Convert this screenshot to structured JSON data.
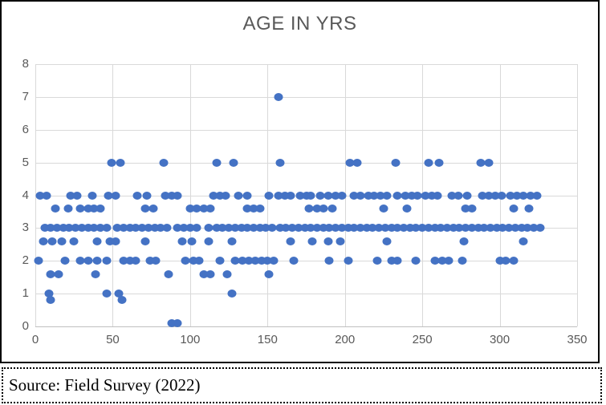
{
  "title": "AGE IN YRS",
  "source_note": "Source: Field Survey (2022)",
  "colors": {
    "dot": "#4472C4",
    "gridline": "#D9D9D9",
    "axis_line": "#BFBFBF",
    "axis_text": "#595959",
    "title_text": "#595959",
    "frame_border": "#000000"
  },
  "chart_data": {
    "type": "scatter",
    "title": "AGE IN YRS",
    "xlabel": "",
    "ylabel": "",
    "xlim": [
      0,
      350
    ],
    "ylim": [
      0,
      8
    ],
    "x_ticks": [
      0,
      50,
      100,
      150,
      200,
      250,
      300,
      350
    ],
    "y_ticks": [
      0,
      1,
      2,
      3,
      4,
      5,
      6,
      7,
      8
    ],
    "grid": true,
    "legend": false,
    "points": [
      [
        88,
        0.1
      ],
      [
        92,
        0.1
      ],
      [
        10,
        0.8
      ],
      [
        56,
        0.8
      ],
      [
        9,
        1
      ],
      [
        46,
        1
      ],
      [
        54,
        1
      ],
      [
        127,
        1
      ],
      [
        10,
        1.6
      ],
      [
        15,
        1.6
      ],
      [
        39,
        1.6
      ],
      [
        86,
        1.6
      ],
      [
        109,
        1.6
      ],
      [
        113,
        1.6
      ],
      [
        124,
        1.6
      ],
      [
        151,
        1.6
      ],
      [
        2,
        2
      ],
      [
        19,
        2
      ],
      [
        29,
        2
      ],
      [
        34,
        2
      ],
      [
        40,
        2
      ],
      [
        46,
        2
      ],
      [
        57,
        2
      ],
      [
        61,
        2
      ],
      [
        65,
        2
      ],
      [
        74,
        2
      ],
      [
        78,
        2
      ],
      [
        97,
        2
      ],
      [
        102,
        2
      ],
      [
        106,
        2
      ],
      [
        119,
        2
      ],
      [
        129,
        2
      ],
      [
        134,
        2
      ],
      [
        138,
        2
      ],
      [
        142,
        2
      ],
      [
        146,
        2
      ],
      [
        150,
        2
      ],
      [
        154,
        2
      ],
      [
        167,
        2
      ],
      [
        190,
        2
      ],
      [
        202,
        2
      ],
      [
        221,
        2
      ],
      [
        230,
        2
      ],
      [
        234,
        2
      ],
      [
        246,
        2
      ],
      [
        258,
        2
      ],
      [
        263,
        2
      ],
      [
        267,
        2
      ],
      [
        276,
        2
      ],
      [
        300,
        2
      ],
      [
        304,
        2
      ],
      [
        309,
        2
      ],
      [
        5,
        2.6
      ],
      [
        11,
        2.6
      ],
      [
        17,
        2.6
      ],
      [
        25,
        2.6
      ],
      [
        40,
        2.6
      ],
      [
        48,
        2.6
      ],
      [
        52,
        2.6
      ],
      [
        71,
        2.6
      ],
      [
        95,
        2.6
      ],
      [
        101,
        2.6
      ],
      [
        112,
        2.6
      ],
      [
        127,
        2.6
      ],
      [
        165,
        2.6
      ],
      [
        179,
        2.6
      ],
      [
        189,
        2.6
      ],
      [
        197,
        2.6
      ],
      [
        227,
        2.6
      ],
      [
        277,
        2.6
      ],
      [
        315,
        2.6
      ],
      [
        6,
        3
      ],
      [
        10,
        3
      ],
      [
        14,
        3
      ],
      [
        18,
        3
      ],
      [
        22,
        3
      ],
      [
        26,
        3
      ],
      [
        30,
        3
      ],
      [
        34,
        3
      ],
      [
        38,
        3
      ],
      [
        42,
        3
      ],
      [
        46,
        3
      ],
      [
        53,
        3
      ],
      [
        57,
        3
      ],
      [
        61,
        3
      ],
      [
        65,
        3
      ],
      [
        69,
        3
      ],
      [
        73,
        3
      ],
      [
        77,
        3
      ],
      [
        81,
        3
      ],
      [
        85,
        3
      ],
      [
        92,
        3
      ],
      [
        96,
        3
      ],
      [
        100,
        3
      ],
      [
        104,
        3
      ],
      [
        112,
        3
      ],
      [
        117,
        3
      ],
      [
        121,
        3
      ],
      [
        125,
        3
      ],
      [
        129,
        3
      ],
      [
        133,
        3
      ],
      [
        137,
        3
      ],
      [
        141,
        3
      ],
      [
        145,
        3
      ],
      [
        149,
        3
      ],
      [
        153,
        3
      ],
      [
        158,
        3
      ],
      [
        162,
        3
      ],
      [
        166,
        3
      ],
      [
        170,
        3
      ],
      [
        174,
        3
      ],
      [
        178,
        3
      ],
      [
        182,
        3
      ],
      [
        186,
        3
      ],
      [
        190,
        3
      ],
      [
        194,
        3
      ],
      [
        198,
        3
      ],
      [
        202,
        3
      ],
      [
        206,
        3
      ],
      [
        210,
        3
      ],
      [
        214,
        3
      ],
      [
        218,
        3
      ],
      [
        222,
        3
      ],
      [
        226,
        3
      ],
      [
        230,
        3
      ],
      [
        234,
        3
      ],
      [
        238,
        3
      ],
      [
        242,
        3
      ],
      [
        246,
        3
      ],
      [
        250,
        3
      ],
      [
        254,
        3
      ],
      [
        258,
        3
      ],
      [
        262,
        3
      ],
      [
        266,
        3
      ],
      [
        270,
        3
      ],
      [
        274,
        3
      ],
      [
        278,
        3
      ],
      [
        282,
        3
      ],
      [
        286,
        3
      ],
      [
        290,
        3
      ],
      [
        294,
        3
      ],
      [
        298,
        3
      ],
      [
        302,
        3
      ],
      [
        306,
        3
      ],
      [
        310,
        3
      ],
      [
        314,
        3
      ],
      [
        318,
        3
      ],
      [
        322,
        3
      ],
      [
        326,
        3
      ],
      [
        13,
        3.6
      ],
      [
        21,
        3.6
      ],
      [
        29,
        3.6
      ],
      [
        34,
        3.6
      ],
      [
        38,
        3.6
      ],
      [
        42,
        3.6
      ],
      [
        71,
        3.6
      ],
      [
        76,
        3.6
      ],
      [
        100,
        3.6
      ],
      [
        104,
        3.6
      ],
      [
        109,
        3.6
      ],
      [
        113,
        3.6
      ],
      [
        137,
        3.6
      ],
      [
        141,
        3.6
      ],
      [
        145,
        3.6
      ],
      [
        177,
        3.6
      ],
      [
        182,
        3.6
      ],
      [
        186,
        3.6
      ],
      [
        192,
        3.6
      ],
      [
        225,
        3.6
      ],
      [
        240,
        3.6
      ],
      [
        278,
        3.6
      ],
      [
        282,
        3.6
      ],
      [
        309,
        3.6
      ],
      [
        319,
        3.6
      ],
      [
        3,
        4
      ],
      [
        7,
        4
      ],
      [
        23,
        4
      ],
      [
        27,
        4
      ],
      [
        37,
        4
      ],
      [
        47,
        4
      ],
      [
        52,
        4
      ],
      [
        66,
        4
      ],
      [
        72,
        4
      ],
      [
        84,
        4
      ],
      [
        88,
        4
      ],
      [
        92,
        4
      ],
      [
        115,
        4
      ],
      [
        119,
        4
      ],
      [
        123,
        4
      ],
      [
        131,
        4
      ],
      [
        137,
        4
      ],
      [
        151,
        4
      ],
      [
        157,
        4
      ],
      [
        161,
        4
      ],
      [
        165,
        4
      ],
      [
        171,
        4
      ],
      [
        175,
        4
      ],
      [
        178,
        4
      ],
      [
        184,
        4
      ],
      [
        189,
        4
      ],
      [
        194,
        4
      ],
      [
        198,
        4
      ],
      [
        206,
        4
      ],
      [
        210,
        4
      ],
      [
        215,
        4
      ],
      [
        219,
        4
      ],
      [
        223,
        4
      ],
      [
        227,
        4
      ],
      [
        234,
        4
      ],
      [
        239,
        4
      ],
      [
        243,
        4
      ],
      [
        247,
        4
      ],
      [
        252,
        4
      ],
      [
        256,
        4
      ],
      [
        260,
        4
      ],
      [
        269,
        4
      ],
      [
        273,
        4
      ],
      [
        279,
        4
      ],
      [
        289,
        4
      ],
      [
        293,
        4
      ],
      [
        297,
        4
      ],
      [
        301,
        4
      ],
      [
        307,
        4
      ],
      [
        311,
        4
      ],
      [
        315,
        4
      ],
      [
        320,
        4
      ],
      [
        324,
        4
      ],
      [
        49,
        5
      ],
      [
        55,
        5
      ],
      [
        83,
        5
      ],
      [
        117,
        5
      ],
      [
        128,
        5
      ],
      [
        158,
        5
      ],
      [
        203,
        5
      ],
      [
        208,
        5
      ],
      [
        233,
        5
      ],
      [
        254,
        5
      ],
      [
        261,
        5
      ],
      [
        288,
        5
      ],
      [
        293,
        5
      ],
      [
        157,
        7
      ]
    ]
  }
}
